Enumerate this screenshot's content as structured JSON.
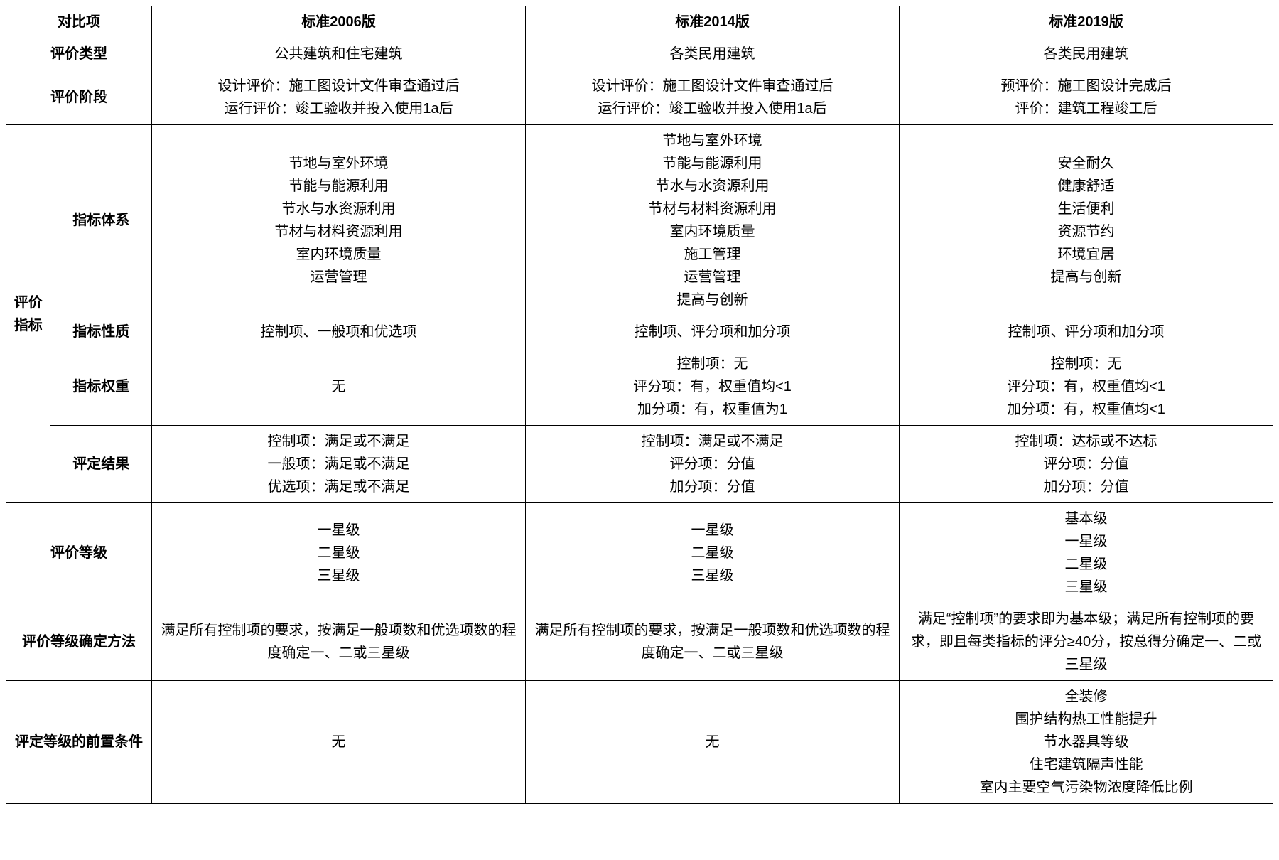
{
  "header": {
    "col1": "对比项",
    "col2": "标准2006版",
    "col3": "标准2014版",
    "col4": "标准2019版"
  },
  "rows": {
    "evalType": {
      "label": "评价类型",
      "v2006": "公共建筑和住宅建筑",
      "v2014": "各类民用建筑",
      "v2019": "各类民用建筑"
    },
    "evalStage": {
      "label": "评价阶段",
      "v2006": "设计评价：施工图设计文件审查通过后\n运行评价：竣工验收并投入使用1a后",
      "v2014": "设计评价：施工图设计文件审查通过后\n运行评价：竣工验收并投入使用1a后",
      "v2019": "预评价：施工图设计完成后\n评价：建筑工程竣工后"
    },
    "evalIndicatorGroup": "评价指标",
    "indicatorSystem": {
      "label": "指标体系",
      "v2006": "节地与室外环境\n节能与能源利用\n节水与水资源利用\n节材与材料资源利用\n室内环境质量\n运营管理",
      "v2014": "节地与室外环境\n节能与能源利用\n节水与水资源利用\n节材与材料资源利用\n室内环境质量\n施工管理\n运营管理\n提高与创新",
      "v2019": "安全耐久\n健康舒适\n生活便利\n资源节约\n环境宜居\n提高与创新"
    },
    "indicatorNature": {
      "label": "指标性质",
      "v2006": "控制项、一般项和优选项",
      "v2014": "控制项、评分项和加分项",
      "v2019": "控制项、评分项和加分项"
    },
    "indicatorWeight": {
      "label": "指标权重",
      "v2006": "无",
      "v2014": "控制项：无\n评分项：有，权重值均<1\n加分项：有，权重值为1",
      "v2019": "控制项：无\n评分项：有，权重值均<1\n加分项：有，权重值均<1"
    },
    "evalResult": {
      "label": "评定结果",
      "v2006": "控制项：满足或不满足\n一般项：满足或不满足\n优选项：满足或不满足",
      "v2014": "控制项：满足或不满足\n评分项：分值\n加分项：分值",
      "v2019": "控制项：达标或不达标\n评分项：分值\n加分项：分值"
    },
    "evalGrade": {
      "label": "评价等级",
      "v2006": "一星级\n二星级\n三星级",
      "v2014": "一星级\n二星级\n三星级",
      "v2019": "基本级\n一星级\n二星级\n三星级"
    },
    "gradeMethod": {
      "label": "评价等级确定方法",
      "v2006": "满足所有控制项的要求，按满足一般项数和优选项数的程度确定一、二或三星级",
      "v2014": "满足所有控制项的要求，按满足一般项数和优选项数的程度确定一、二或三星级",
      "v2019": "满足“控制项”的要求即为基本级；满足所有控制项的要求，即且每类指标的评分≥40分，按总得分确定一、二或三星级"
    },
    "preconditions": {
      "label": "评定等级的前置条件",
      "v2006": "无",
      "v2014": "无",
      "v2019": "全装修\n围护结构热工性能提升\n节水器具等级\n住宅建筑隔声性能\n室内主要空气污染物浓度降低比例"
    }
  }
}
